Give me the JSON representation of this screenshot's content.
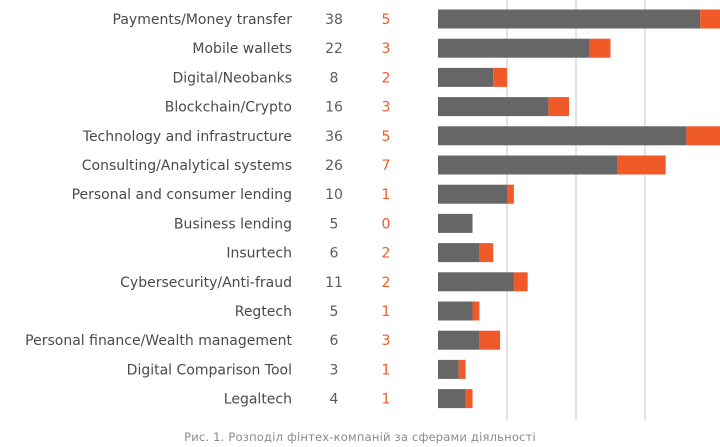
{
  "chart_data": {
    "type": "bar",
    "stacked": true,
    "orientation": "horizontal",
    "categories": [
      "Payments/Money transfer",
      "Mobile wallets",
      "Digital/Neobanks",
      "Blockchain/Crypto",
      "Technology and infrastructure",
      "Consulting/Analytical systems",
      "Personal and consumer lending",
      "Business lending",
      "Insurtech",
      "Cybersecurity/Anti-fraud",
      "Regtech",
      "Personal finance/Wealth management",
      "Digital Comparison Tool",
      "Legaltech"
    ],
    "series": [
      {
        "values": [
          38,
          22,
          8,
          16,
          36,
          26,
          10,
          5,
          6,
          11,
          5,
          6,
          3,
          4
        ],
        "color": "#666666"
      },
      {
        "values": [
          5,
          3,
          2,
          3,
          5,
          7,
          1,
          0,
          2,
          2,
          1,
          3,
          1,
          1
        ],
        "color": "#f05a28"
      }
    ],
    "xlim": [
      0,
      45
    ],
    "grid": true,
    "grid_values": [
      10,
      20,
      30
    ],
    "legend": "none",
    "title": "",
    "xlabel": "",
    "ylabel": ""
  },
  "caption": "Рис. 1. Розподіл фінтех-компаній за сферами діяльності",
  "colors": {
    "gray_series": "#666666",
    "orange_series": "#f05a28",
    "gridline": "#cfcfcf",
    "label_text": "#4a4a4a"
  }
}
